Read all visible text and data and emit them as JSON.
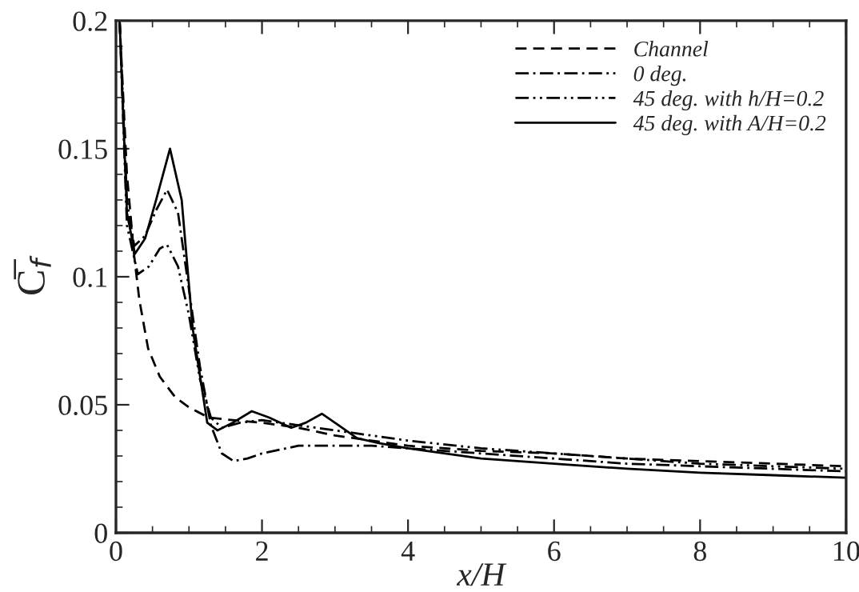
{
  "chart_data": {
    "type": "line",
    "xlabel": "x/H",
    "ylabel": "C̅$_{f}$",
    "xlim": [
      0,
      10
    ],
    "ylim": [
      0,
      0.2
    ],
    "xticks": [
      0,
      2,
      4,
      6,
      8,
      10
    ],
    "yticks": [
      0,
      0.05,
      0.1,
      0.15,
      0.2
    ],
    "legend": "top right",
    "grid": false,
    "series": [
      {
        "name": "Channel",
        "color": "#000000",
        "line_style": "dashed",
        "x": [
          0.05,
          0.15,
          0.25,
          0.32,
          0.44,
          0.6,
          0.81,
          1.0,
          1.27,
          1.6,
          2.0,
          2.5,
          3.0,
          4.0,
          5.0,
          6.0,
          7.0,
          8.0,
          9.0,
          10.0
        ],
        "values": [
          0.2,
          0.14,
          0.108,
          0.091,
          0.072,
          0.061,
          0.053,
          0.049,
          0.045,
          0.044,
          0.043,
          0.041,
          0.038,
          0.034,
          0.032,
          0.031,
          0.029,
          0.028,
          0.027,
          0.026
        ]
      },
      {
        "name": "0 deg.",
        "color": "#000000",
        "line_style": "dash-dot",
        "x": [
          0.05,
          0.15,
          0.25,
          0.4,
          0.55,
          0.7,
          0.85,
          1.0,
          1.15,
          1.3,
          1.45,
          1.61,
          1.8,
          2.0,
          2.5,
          3.0,
          3.5,
          4.0,
          5.0,
          6.0,
          7.0,
          8.0,
          9.0,
          10.0
        ],
        "values": [
          0.2,
          0.13,
          0.112,
          0.116,
          0.126,
          0.134,
          0.125,
          0.095,
          0.065,
          0.042,
          0.031,
          0.028,
          0.029,
          0.031,
          0.034,
          0.034,
          0.034,
          0.033,
          0.031,
          0.029,
          0.027,
          0.026,
          0.025,
          0.024
        ]
      },
      {
        "name": "45 deg. with h/H=0.2",
        "color": "#000000",
        "line_style": "dash-dot-dot",
        "x": [
          0.05,
          0.15,
          0.3,
          0.45,
          0.6,
          0.7,
          0.85,
          1.0,
          1.15,
          1.3,
          1.45,
          1.7,
          2.0,
          2.5,
          3.0,
          3.5,
          4.0,
          5.0,
          6.0,
          7.0,
          8.0,
          9.0,
          10.0
        ],
        "values": [
          0.2,
          0.12,
          0.101,
          0.104,
          0.111,
          0.1125,
          0.104,
          0.085,
          0.06,
          0.045,
          0.041,
          0.043,
          0.044,
          0.042,
          0.04,
          0.038,
          0.036,
          0.033,
          0.031,
          0.029,
          0.027,
          0.026,
          0.025
        ]
      },
      {
        "name": "45 deg. with A/H=0.2",
        "color": "#000000",
        "line_style": "solid",
        "x": [
          0.05,
          0.15,
          0.26,
          0.4,
          0.55,
          0.74,
          0.9,
          1.05,
          1.25,
          1.39,
          1.6,
          1.86,
          2.1,
          2.4,
          2.6,
          2.82,
          3.05,
          3.3,
          3.6,
          4.0,
          5.0,
          6.0,
          7.0,
          8.0,
          9.0,
          10.0
        ],
        "values": [
          0.2,
          0.125,
          0.109,
          0.115,
          0.13,
          0.15,
          0.13,
          0.08,
          0.043,
          0.04,
          0.043,
          0.0475,
          0.045,
          0.041,
          0.043,
          0.0465,
          0.042,
          0.037,
          0.035,
          0.033,
          0.029,
          0.027,
          0.025,
          0.0235,
          0.0225,
          0.0215
        ]
      }
    ]
  }
}
